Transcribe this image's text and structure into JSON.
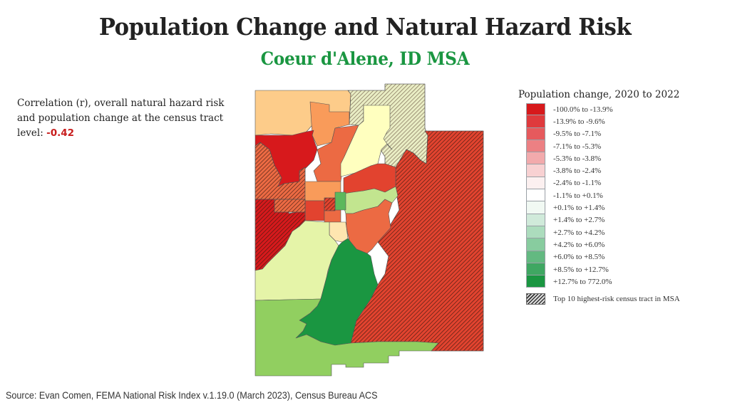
{
  "header": {
    "title": "Population Change and Natural Hazard Risk",
    "subtitle": "Coeur d'Alene, ID MSA"
  },
  "correlation": {
    "text": "Correlation (r), overall natural hazard risk and population change at the census tract level: ",
    "value": "-0.42",
    "value_color": "#c81e1e"
  },
  "legend": {
    "title": "Population change, 2020 to 2022",
    "items": [
      {
        "label": "-100.0% to -13.9%",
        "color": "#d7191c"
      },
      {
        "label": "-13.9% to -9.6%",
        "color": "#df3a3d"
      },
      {
        "label": "-9.5% to -7.1%",
        "color": "#e65a5d"
      },
      {
        "label": "-7.1% to -5.3%",
        "color": "#ec8083"
      },
      {
        "label": "-5.3% to -3.8%",
        "color": "#f2aaac"
      },
      {
        "label": "-3.8% to -2.4%",
        "color": "#f8d1d2"
      },
      {
        "label": "-2.4% to -1.1%",
        "color": "#fcf0f0"
      },
      {
        "label": "-1.1% to +0.1%",
        "color": "#ffffff"
      },
      {
        "label": "+0.1% to +1.4%",
        "color": "#f1f9f3"
      },
      {
        "label": "+1.4% to +2.7%",
        "color": "#d0eada"
      },
      {
        "label": "+2.7% to +4.2%",
        "color": "#acdcbd"
      },
      {
        "label": "+4.2% to +6.0%",
        "color": "#88cc9f"
      },
      {
        "label": "+6.0% to +8.5%",
        "color": "#63b981"
      },
      {
        "label": "+8.5% to +12.7%",
        "color": "#3fa762"
      },
      {
        "label": "+12.7% to 772.0%",
        "color": "#1a9641"
      }
    ],
    "hatch_label": "Top 10 highest-risk census tract in MSA"
  },
  "map": {
    "region": "Coeur d'Alene, ID MSA (Kootenai County) census tracts",
    "tract_colors": {
      "light_orange": "#fdcc8a",
      "orange": "#f99b5a",
      "dark_orange": "#ec6a43",
      "red_orange": "#e2432f",
      "deep_red": "#d7191c",
      "pale_yellow": "#ffffbf",
      "pale_yellow_green": "#e5f4a8",
      "light_green": "#c2e58f",
      "mid_green": "#91cf60",
      "green": "#5cb85c",
      "dark_green": "#1a9641",
      "cream": "#fee6b0"
    }
  },
  "source": "Source: Evan Comen, FEMA National Risk Index v.1.19.0  (March 2023), Census Bureau ACS"
}
